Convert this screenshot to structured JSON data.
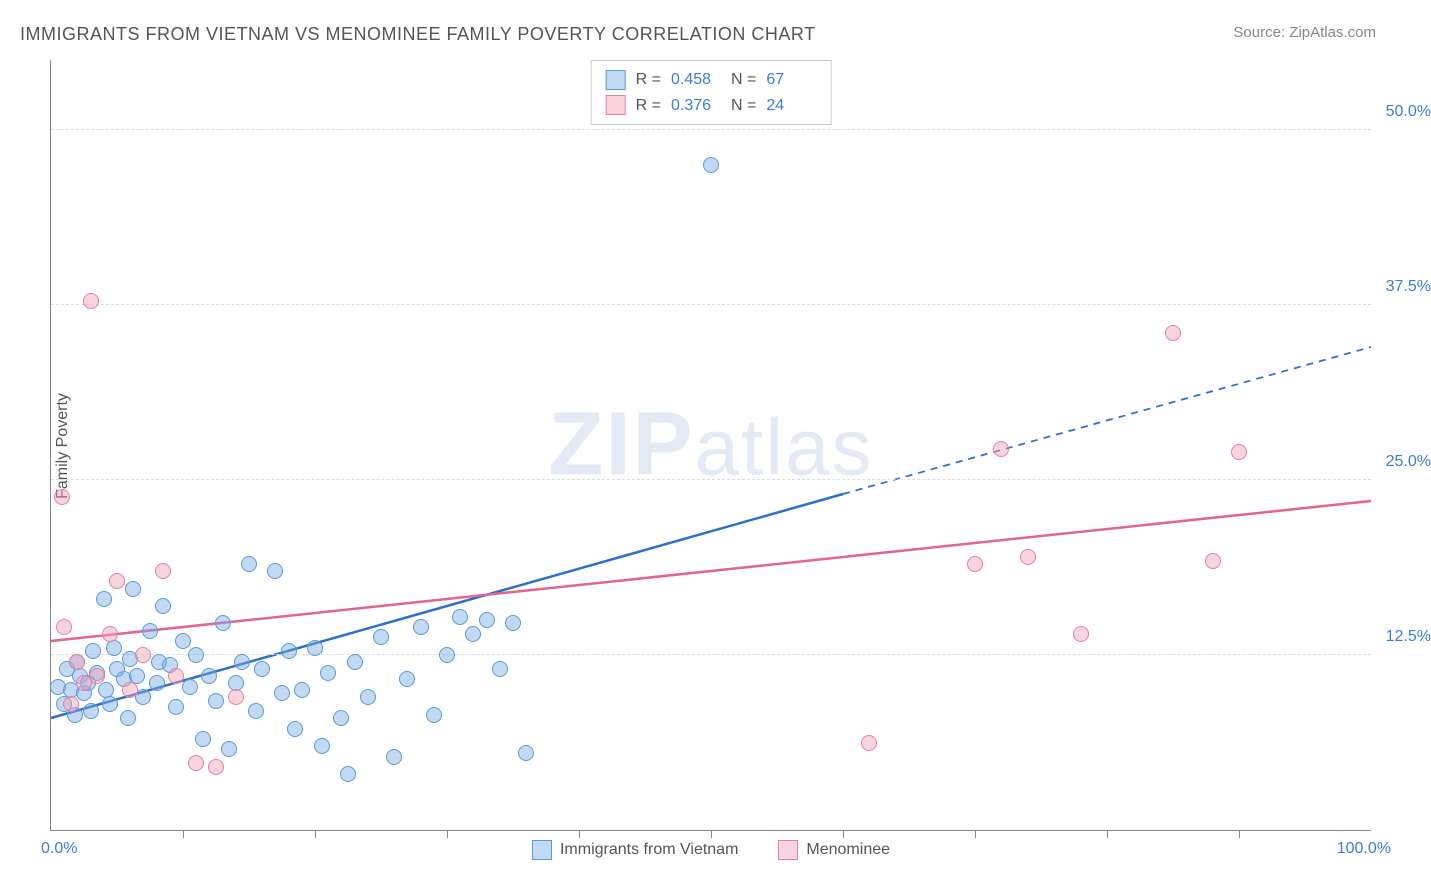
{
  "title": "IMMIGRANTS FROM VIETNAM VS MENOMINEE FAMILY POVERTY CORRELATION CHART",
  "source_label": "Source: ",
  "source_name": "ZipAtlas.com",
  "ylabel": "Family Poverty",
  "watermark_bold": "ZIP",
  "watermark_rest": "atlas",
  "chart": {
    "type": "scatter",
    "xlim": [
      0,
      100
    ],
    "ylim": [
      0,
      55
    ],
    "x_min_label": "0.0%",
    "x_max_label": "100.0%",
    "y_ticks": [
      12.5,
      25.0,
      37.5,
      50.0
    ],
    "y_tick_labels": [
      "12.5%",
      "25.0%",
      "37.5%",
      "50.0%"
    ],
    "x_tick_positions": [
      10,
      20,
      30,
      40,
      50,
      60,
      70,
      80,
      90
    ],
    "grid_color": "#dddddd",
    "axis_color": "#888888",
    "background_color": "#ffffff",
    "marker_radius": 8,
    "marker_border_width": 1.5,
    "series": [
      {
        "name": "Immigrants from Vietnam",
        "color_fill": "rgba(120,170,230,0.45)",
        "color_stroke": "#5a9bd5",
        "line_color": "#2e6fc9",
        "line_width": 2.5,
        "r_value": "0.458",
        "n_value": "67",
        "trend": {
          "x1": 0,
          "y1": 8.0,
          "x_solid_end": 60,
          "y_solid_end": 24.0,
          "x2": 100,
          "y2": 34.5,
          "dashed_after_solid": true
        },
        "points": [
          [
            0.5,
            10.2
          ],
          [
            1.0,
            9.0
          ],
          [
            1.2,
            11.5
          ],
          [
            1.5,
            10.0
          ],
          [
            1.8,
            8.2
          ],
          [
            2.0,
            12.0
          ],
          [
            2.2,
            11.0
          ],
          [
            2.5,
            9.8
          ],
          [
            2.8,
            10.5
          ],
          [
            3.0,
            8.5
          ],
          [
            3.2,
            12.8
          ],
          [
            3.5,
            11.2
          ],
          [
            4.0,
            16.5
          ],
          [
            4.2,
            10.0
          ],
          [
            4.5,
            9.0
          ],
          [
            4.8,
            13.0
          ],
          [
            5.0,
            11.5
          ],
          [
            5.5,
            10.8
          ],
          [
            5.8,
            8.0
          ],
          [
            6.0,
            12.2
          ],
          [
            6.2,
            17.2
          ],
          [
            6.5,
            11.0
          ],
          [
            7.0,
            9.5
          ],
          [
            7.5,
            14.2
          ],
          [
            8.0,
            10.5
          ],
          [
            8.2,
            12.0
          ],
          [
            8.5,
            16.0
          ],
          [
            9.0,
            11.8
          ],
          [
            9.5,
            8.8
          ],
          [
            10.0,
            13.5
          ],
          [
            10.5,
            10.2
          ],
          [
            11.0,
            12.5
          ],
          [
            11.5,
            6.5
          ],
          [
            12.0,
            11.0
          ],
          [
            12.5,
            9.2
          ],
          [
            13.0,
            14.8
          ],
          [
            13.5,
            5.8
          ],
          [
            14.0,
            10.5
          ],
          [
            14.5,
            12.0
          ],
          [
            15.0,
            19.0
          ],
          [
            15.5,
            8.5
          ],
          [
            16.0,
            11.5
          ],
          [
            17.0,
            18.5
          ],
          [
            17.5,
            9.8
          ],
          [
            18.0,
            12.8
          ],
          [
            18.5,
            7.2
          ],
          [
            19.0,
            10.0
          ],
          [
            20.0,
            13.0
          ],
          [
            20.5,
            6.0
          ],
          [
            21.0,
            11.2
          ],
          [
            22.0,
            8.0
          ],
          [
            22.5,
            4.0
          ],
          [
            23.0,
            12.0
          ],
          [
            24.0,
            9.5
          ],
          [
            25.0,
            13.8
          ],
          [
            26.0,
            5.2
          ],
          [
            27.0,
            10.8
          ],
          [
            28.0,
            14.5
          ],
          [
            29.0,
            8.2
          ],
          [
            30.0,
            12.5
          ],
          [
            31.0,
            15.2
          ],
          [
            32.0,
            14.0
          ],
          [
            33.0,
            15.0
          ],
          [
            34.0,
            11.5
          ],
          [
            35.0,
            14.8
          ],
          [
            36.0,
            5.5
          ],
          [
            50.0,
            47.5
          ]
        ]
      },
      {
        "name": "Menominee",
        "color_fill": "rgba(240,160,185,0.45)",
        "color_stroke": "#e87fa3",
        "line_color": "#e36394",
        "line_width": 2.5,
        "r_value": "0.376",
        "n_value": "24",
        "trend": {
          "x1": 0,
          "y1": 13.5,
          "x_solid_end": 100,
          "y_solid_end": 23.5,
          "x2": 100,
          "y2": 23.5,
          "dashed_after_solid": false
        },
        "points": [
          [
            0.8,
            23.8
          ],
          [
            1.0,
            14.5
          ],
          [
            1.5,
            9.0
          ],
          [
            2.0,
            12.0
          ],
          [
            2.5,
            10.5
          ],
          [
            3.0,
            37.8
          ],
          [
            3.5,
            11.0
          ],
          [
            4.5,
            14.0
          ],
          [
            5.0,
            17.8
          ],
          [
            6.0,
            10.0
          ],
          [
            7.0,
            12.5
          ],
          [
            8.5,
            18.5
          ],
          [
            9.5,
            11.0
          ],
          [
            11.0,
            4.8
          ],
          [
            12.5,
            4.5
          ],
          [
            14.0,
            9.5
          ],
          [
            62.0,
            6.2
          ],
          [
            70.0,
            19.0
          ],
          [
            72.0,
            27.2
          ],
          [
            74.0,
            19.5
          ],
          [
            78.0,
            14.0
          ],
          [
            85.0,
            35.5
          ],
          [
            88.0,
            19.2
          ],
          [
            90.0,
            27.0
          ]
        ]
      }
    ]
  },
  "legend_top": {
    "r_label": "R =",
    "n_label": "N ="
  },
  "colors": {
    "title": "#555555",
    "value": "#3b7dd8",
    "source": "#888888"
  }
}
